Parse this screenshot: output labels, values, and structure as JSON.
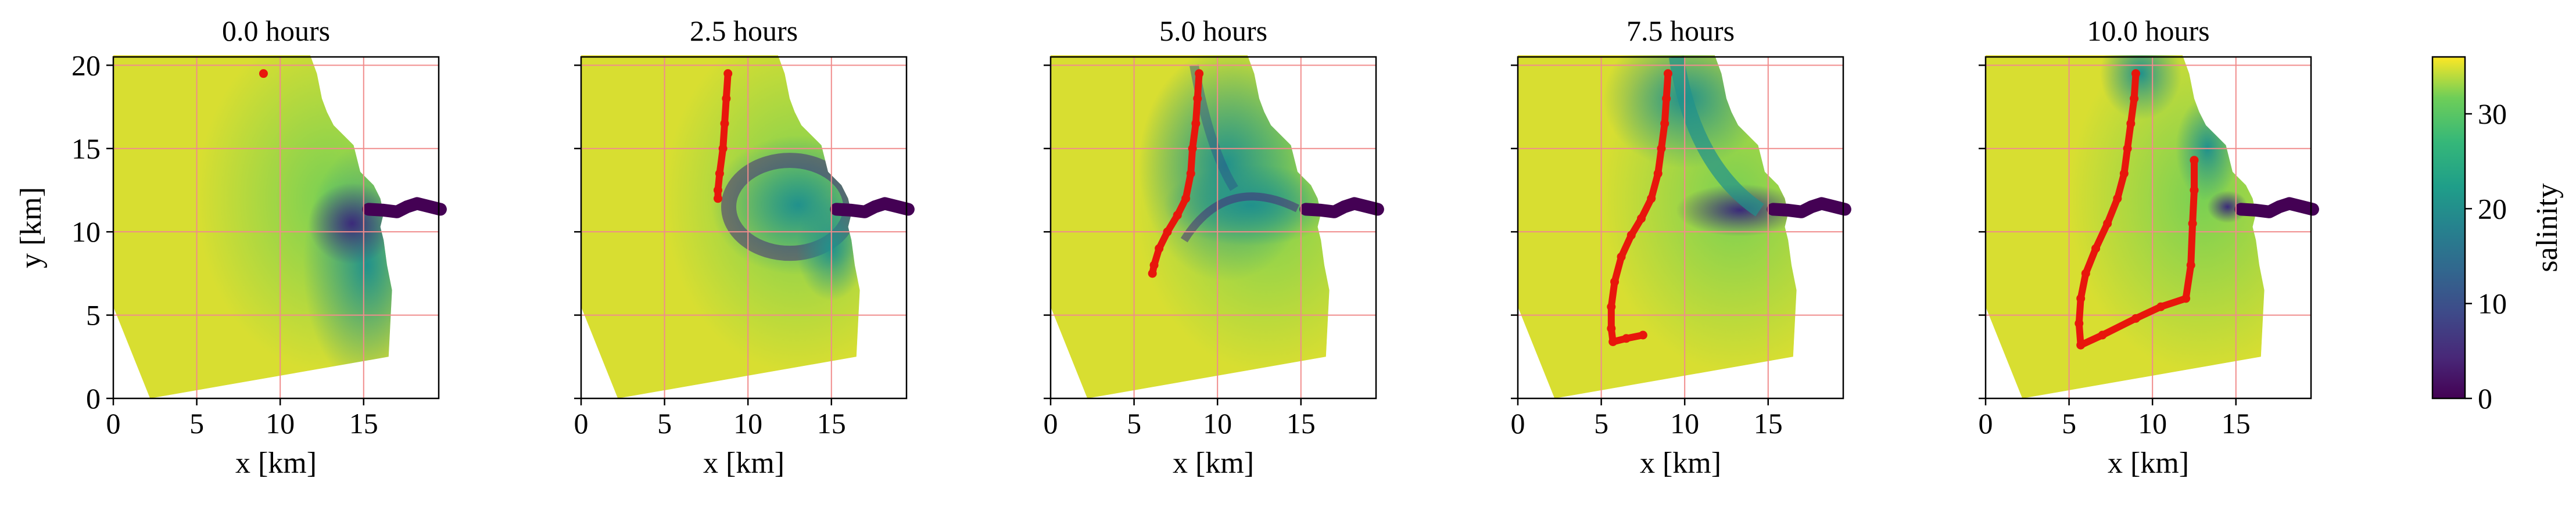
{
  "figure": {
    "x_axis_label": "x [km]",
    "y_axis_label": "y [km]",
    "colorbar_label": "salinity"
  },
  "chart_data": {
    "type": "heatmap",
    "panel_titles": [
      "0.0 hours",
      "2.5 hours",
      "5.0 hours",
      "7.5 hours",
      "10.0 hours"
    ],
    "xlabel": "x [km]",
    "ylabel": "y [km]",
    "xlim": [
      0,
      19.5
    ],
    "ylim": [
      0,
      20.5
    ],
    "x_ticks": [
      "0",
      "5",
      "10",
      "15"
    ],
    "y_ticks": [
      "0",
      "5",
      "10",
      "15",
      "20"
    ],
    "grid": "red, every 5 km",
    "colorbar": {
      "label": "salinity",
      "range": [
        0,
        36
      ],
      "ticks": [
        "0",
        "10",
        "20",
        "30"
      ],
      "colormap": "viridis"
    },
    "colors": {
      "marker": "#e8160c",
      "grid": "#f08c8c",
      "low_salinity": "#440154",
      "mid_salinity": "#21918c",
      "high_salinity": "#fde725"
    },
    "tracer_paths": [
      [
        [
          9.0,
          19.5
        ]
      ],
      [
        [
          8.8,
          19.5
        ],
        [
          8.7,
          18.0
        ],
        [
          8.6,
          16.5
        ],
        [
          8.5,
          15.0
        ],
        [
          8.3,
          13.5
        ],
        [
          8.2,
          12.5
        ],
        [
          8.2,
          12.0
        ]
      ],
      [
        [
          8.9,
          19.5
        ],
        [
          8.8,
          18.0
        ],
        [
          8.7,
          16.5
        ],
        [
          8.5,
          15.0
        ],
        [
          8.4,
          13.5
        ],
        [
          8.1,
          12.0
        ],
        [
          7.6,
          11.0
        ],
        [
          7.0,
          10.0
        ],
        [
          6.5,
          9.0
        ],
        [
          6.2,
          8.0
        ],
        [
          6.1,
          7.5
        ]
      ],
      [
        [
          9.0,
          19.5
        ],
        [
          8.9,
          18.0
        ],
        [
          8.8,
          16.5
        ],
        [
          8.6,
          15.0
        ],
        [
          8.4,
          13.5
        ],
        [
          8.0,
          12.0
        ],
        [
          7.4,
          10.8
        ],
        [
          6.8,
          9.8
        ],
        [
          6.2,
          8.5
        ],
        [
          5.8,
          7.0
        ],
        [
          5.6,
          5.5
        ],
        [
          5.6,
          4.2
        ],
        [
          5.7,
          3.4
        ],
        [
          6.5,
          3.6
        ],
        [
          7.5,
          3.8
        ]
      ],
      [
        [
          9.0,
          19.5
        ],
        [
          8.9,
          18.0
        ],
        [
          8.7,
          16.5
        ],
        [
          8.5,
          15.0
        ],
        [
          8.3,
          13.5
        ],
        [
          7.9,
          12.0
        ],
        [
          7.3,
          10.5
        ],
        [
          6.6,
          9.0
        ],
        [
          6.0,
          7.5
        ],
        [
          5.7,
          6.0
        ],
        [
          5.6,
          4.5
        ],
        [
          5.7,
          3.2
        ],
        [
          7.0,
          3.8
        ],
        [
          9.0,
          4.8
        ],
        [
          10.5,
          5.5
        ],
        [
          12.0,
          6.0
        ],
        [
          12.3,
          8.0
        ],
        [
          12.4,
          10.5
        ],
        [
          12.5,
          12.5
        ],
        [
          12.5,
          14.3
        ]
      ]
    ]
  }
}
